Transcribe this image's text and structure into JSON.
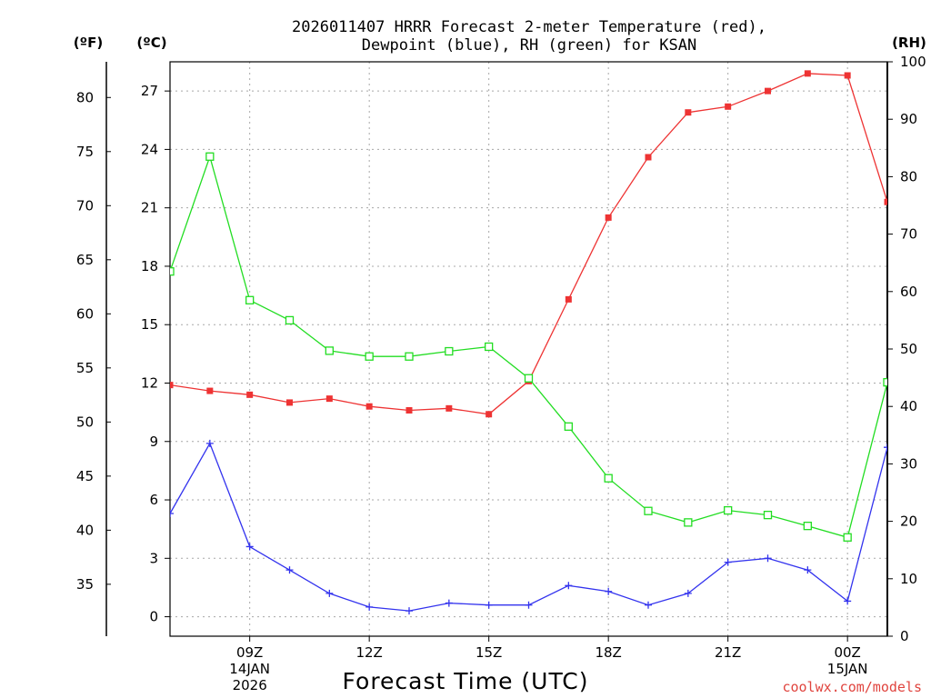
{
  "chart_data": {
    "type": "line",
    "title_lines": [
      "2026011407 HRRR Forecast 2-meter Temperature (red),",
      "Dewpoint (blue), RH (green) for KSAN"
    ],
    "units": {
      "fahrenheit": "(ºF)",
      "celsius": "(ºC)",
      "rh": "(RH)"
    },
    "xlabel": "Forecast Time (UTC)",
    "credit": "coolwx.com/models",
    "x_hours": [
      7,
      8,
      9,
      10,
      11,
      12,
      13,
      14,
      15,
      16,
      17,
      18,
      19,
      20,
      21,
      22,
      23,
      24,
      25
    ],
    "x_range": [
      7,
      25
    ],
    "x_ticks": [
      {
        "hour": 9,
        "lines": [
          "09Z",
          "14JAN",
          "2026"
        ]
      },
      {
        "hour": 12,
        "lines": [
          "12Z"
        ]
      },
      {
        "hour": 15,
        "lines": [
          "15Z"
        ]
      },
      {
        "hour": 18,
        "lines": [
          "18Z"
        ]
      },
      {
        "hour": 21,
        "lines": [
          "21Z"
        ]
      },
      {
        "hour": 24,
        "lines": [
          "00Z",
          "15JAN"
        ]
      }
    ],
    "celsius_axis": {
      "range": [
        -1.0,
        28.5
      ],
      "ticks": [
        0,
        3,
        6,
        9,
        12,
        15,
        18,
        21,
        24,
        27
      ]
    },
    "fahrenheit_ticks": [
      35,
      40,
      45,
      50,
      55,
      60,
      65,
      70,
      75,
      80
    ],
    "rh_axis": {
      "range": [
        0,
        100
      ],
      "ticks": [
        0,
        10,
        20,
        30,
        40,
        50,
        60,
        70,
        80,
        90,
        100
      ]
    },
    "series": [
      {
        "name": "2-meter Temperature",
        "axis": "celsius",
        "color": "#ee3333",
        "marker": "filled-square",
        "values": [
          11.9,
          11.6,
          11.4,
          11.0,
          11.2,
          10.8,
          10.6,
          10.7,
          10.4,
          12.1,
          16.3,
          20.5,
          23.6,
          25.9,
          26.2,
          27.0,
          27.9,
          27.8,
          21.3
        ]
      },
      {
        "name": "Dewpoint",
        "axis": "celsius",
        "color": "#3333ee",
        "marker": "plus",
        "values": [
          5.3,
          8.9,
          3.6,
          2.4,
          1.2,
          0.5,
          0.3,
          0.7,
          0.6,
          0.6,
          1.6,
          1.3,
          0.6,
          1.2,
          2.8,
          3.0,
          2.4,
          0.8,
          8.7
        ]
      },
      {
        "name": "RH",
        "axis": "rh",
        "color": "#22dd22",
        "marker": "open-square",
        "values": [
          63.5,
          83.5,
          58.5,
          55.0,
          49.7,
          48.7,
          48.7,
          49.6,
          50.4,
          44.9,
          36.5,
          27.5,
          21.8,
          19.8,
          21.9,
          21.1,
          19.2,
          17.2,
          44.2
        ]
      }
    ]
  }
}
